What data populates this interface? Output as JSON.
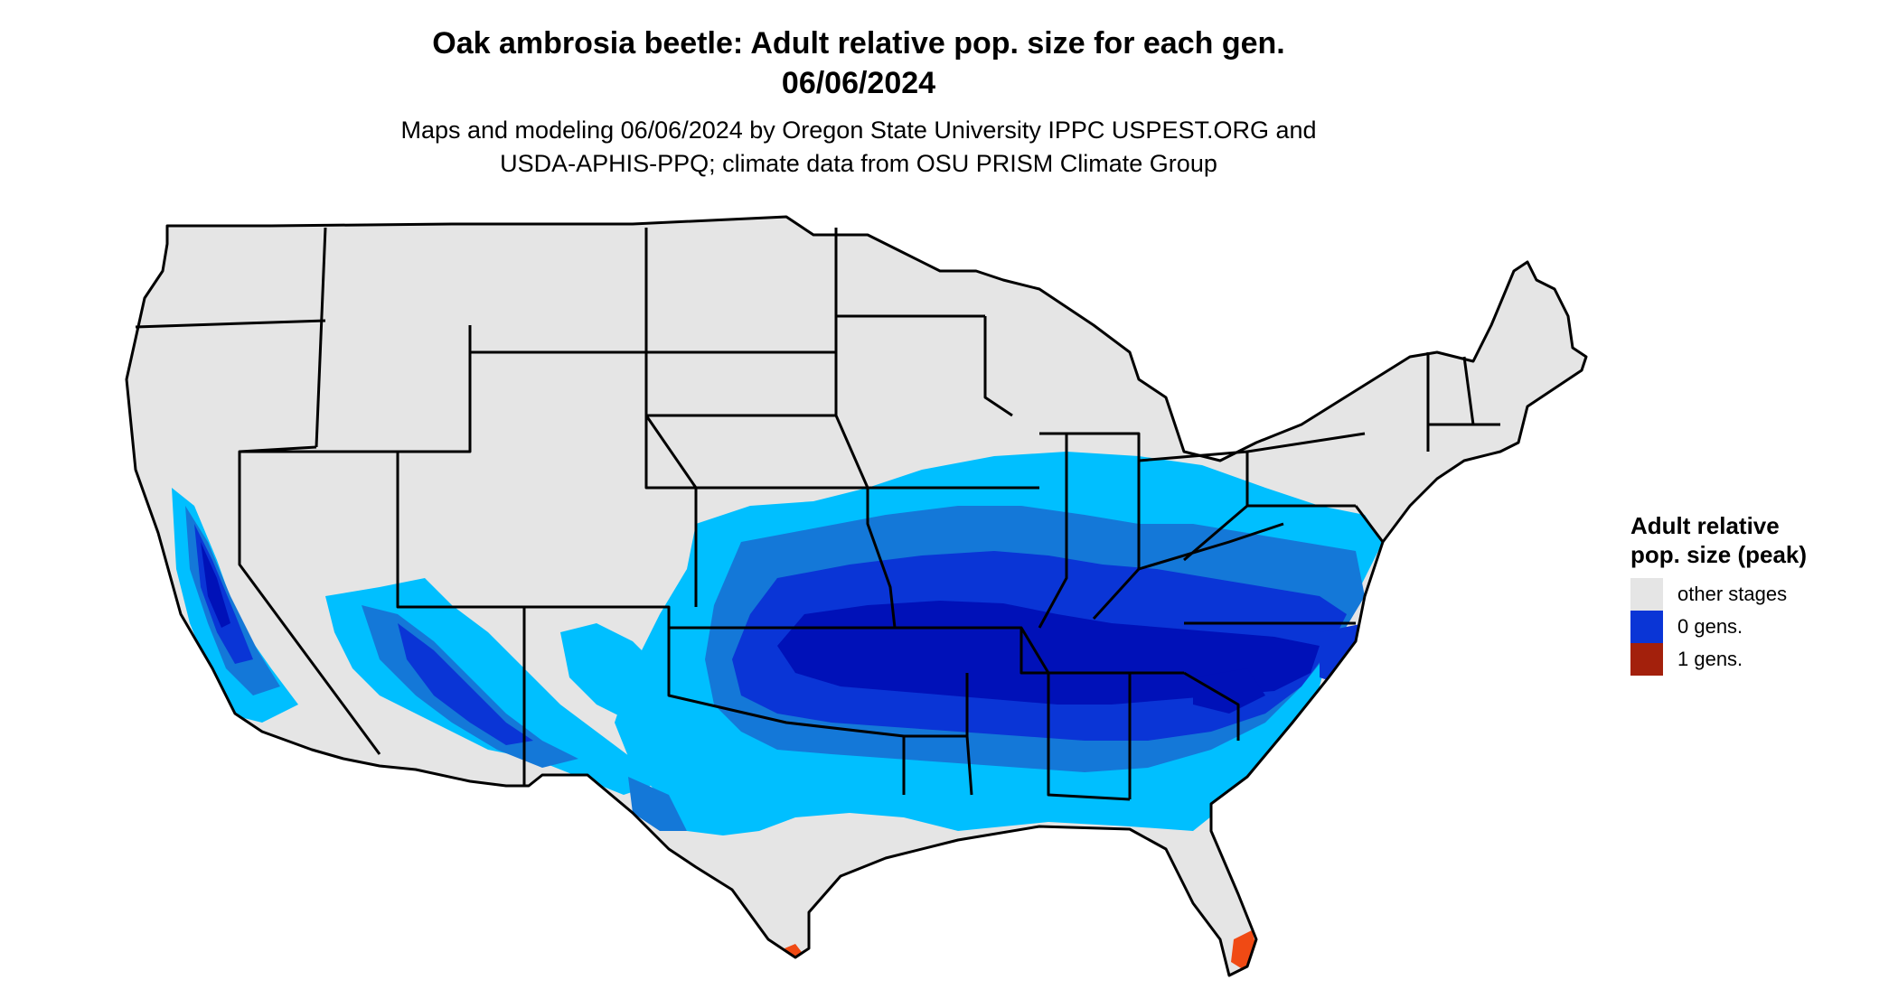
{
  "title_line1": "Oak ambrosia beetle: Adult relative pop. size for each gen.",
  "title_line2": "06/06/2024",
  "subtitle_line1": "Maps and modeling 06/06/2024 by Oregon State University IPPC USPEST.ORG and",
  "subtitle_line2": "USDA-APHIS-PPQ; climate data from OSU PRISM Climate Group",
  "legend": {
    "title": "Adult relative pop. size (peak)",
    "items": [
      {
        "label": "other stages",
        "color": "#e5e5e5"
      },
      {
        "label": "0 gens.",
        "color": "#0a35d6"
      },
      {
        "label": "1 gens.",
        "color": "#a3200c"
      }
    ]
  },
  "colors": {
    "land": "#e5e5e5",
    "light_blue": "#00bfff",
    "mid_blue": "#1478d8",
    "blue": "#0a35d6",
    "dark_blue": "#0011b8",
    "orange": "#f04a14",
    "dark_red": "#a3200c",
    "border": "#000000"
  }
}
